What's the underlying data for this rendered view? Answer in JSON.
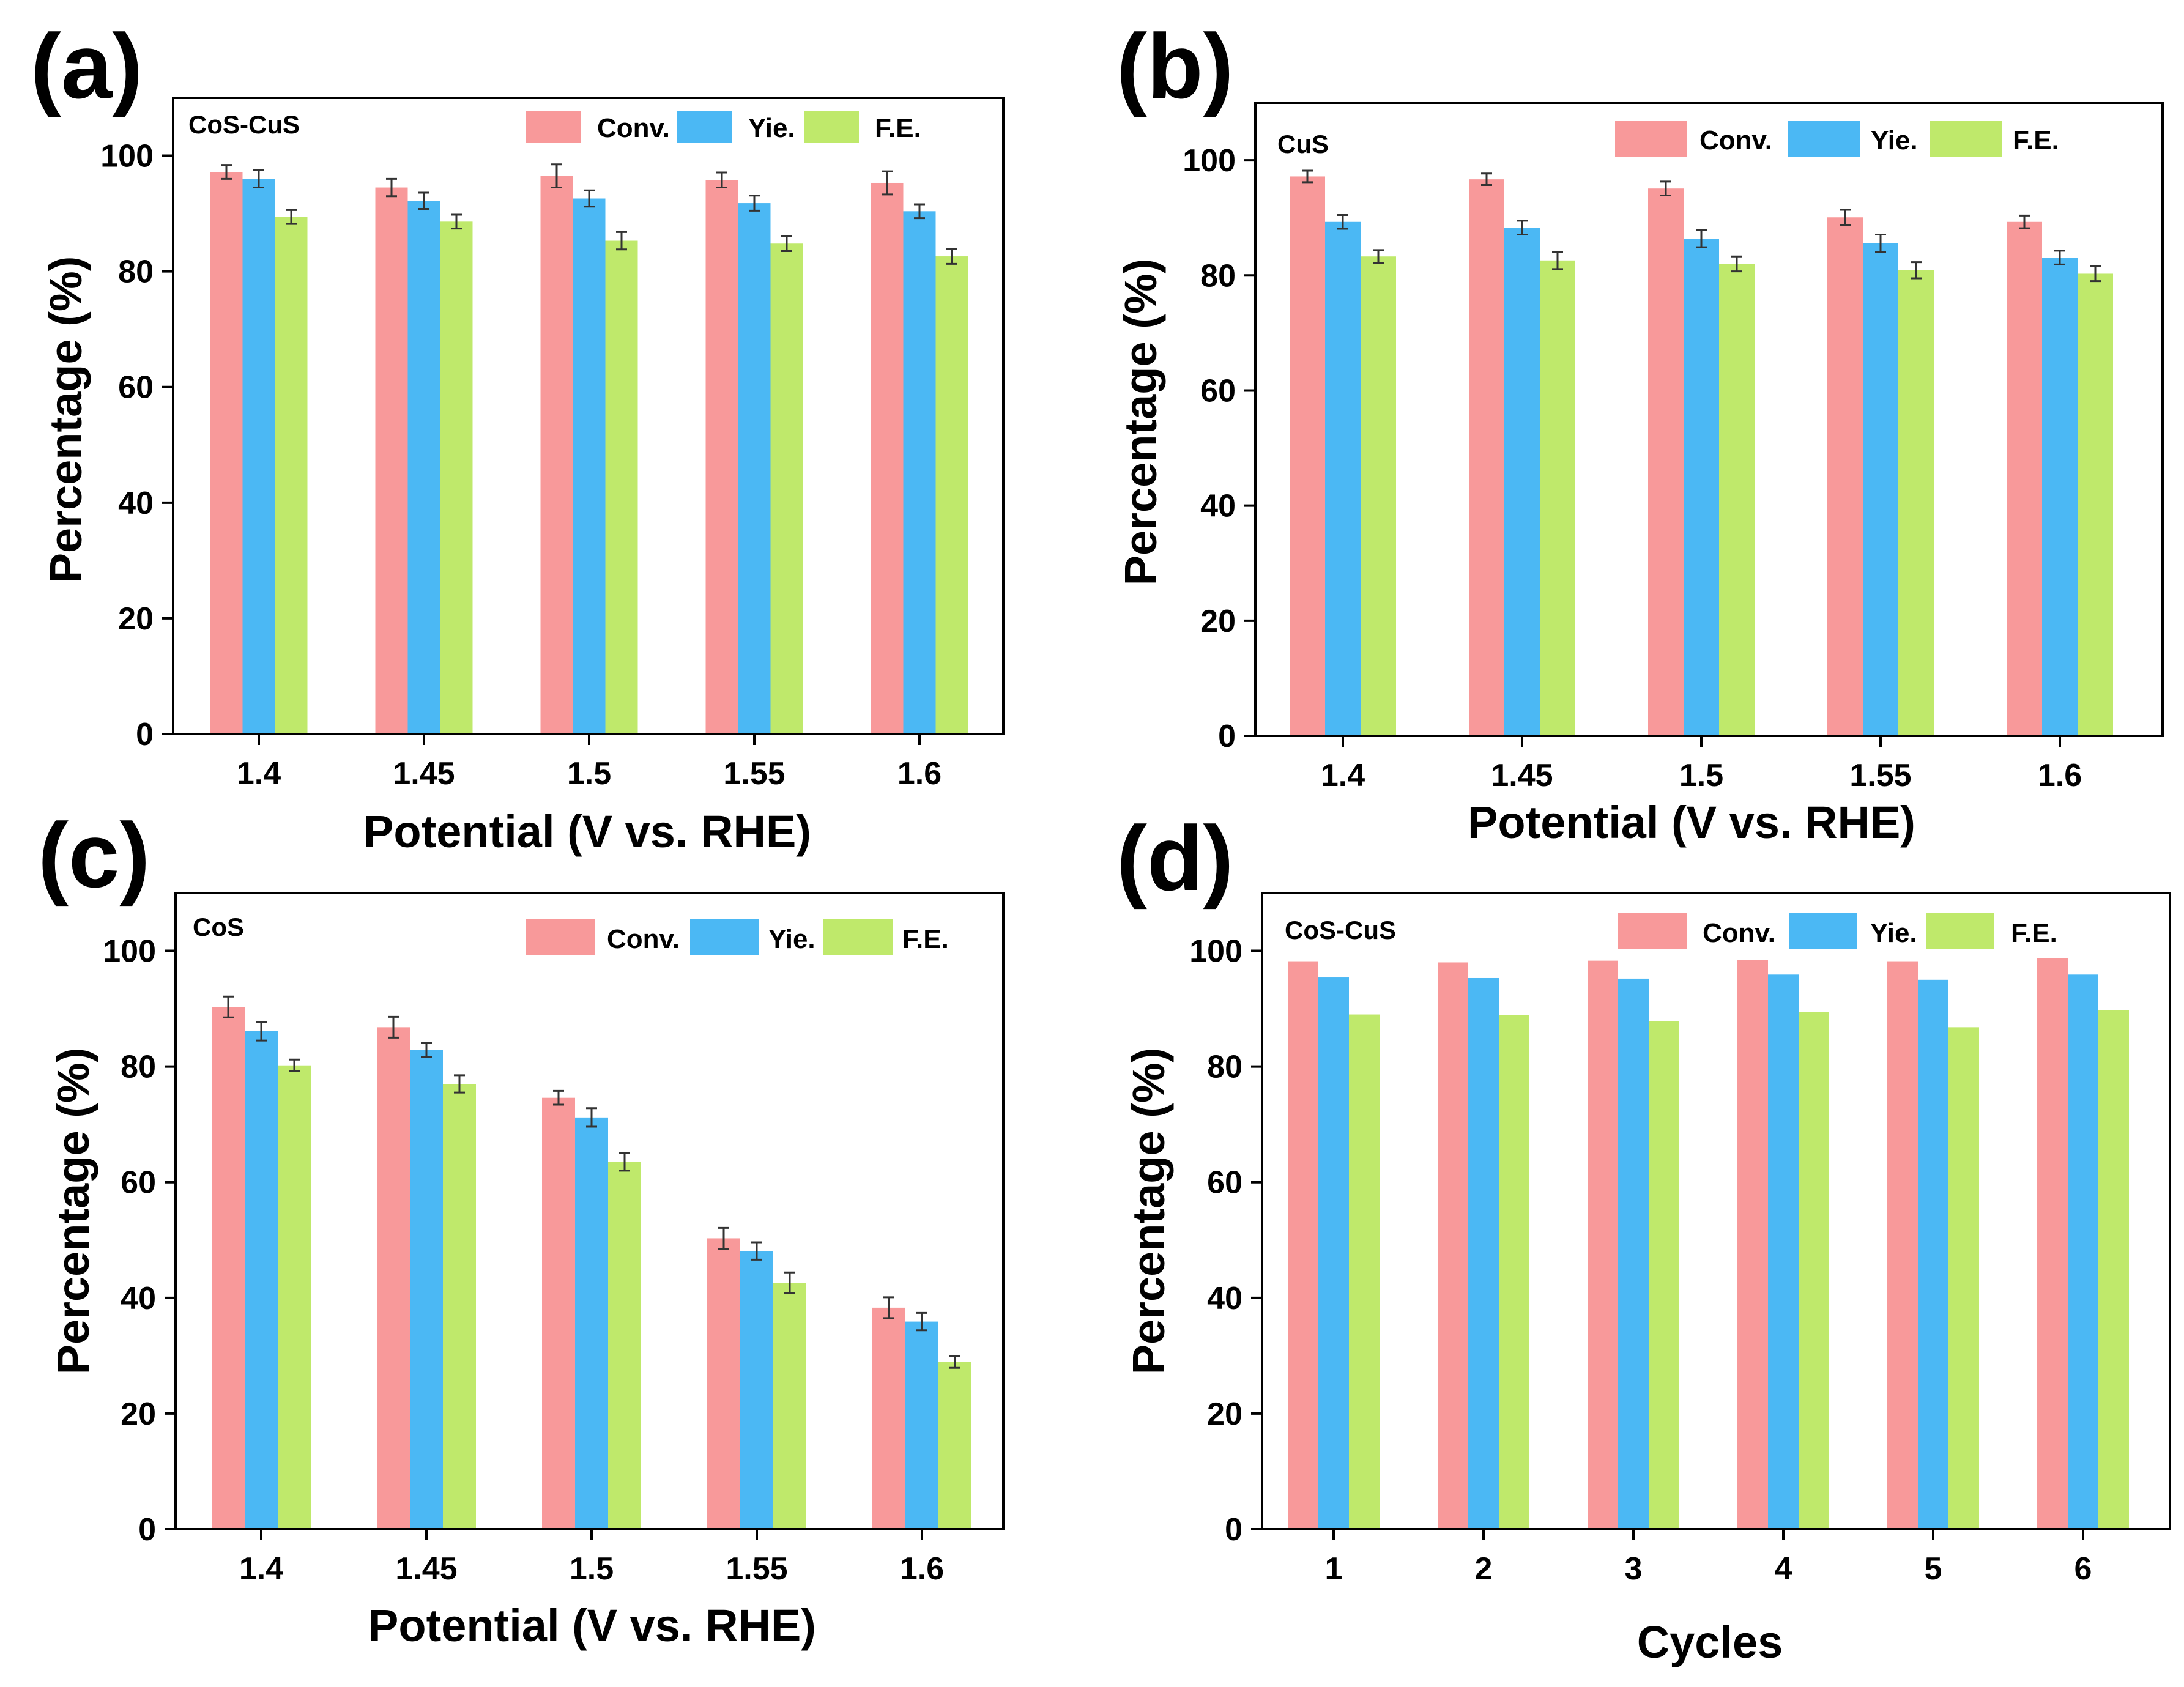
{
  "colors": {
    "conv": "#f8999a",
    "yie": "#4bb8f4",
    "fe": "#bfe96b",
    "axis": "#000000",
    "error": "#333333"
  },
  "legend": [
    "Conv.",
    "Yie.",
    "F.E."
  ],
  "chart_data": [
    {
      "type": "bar",
      "panel": "(a)",
      "sample": "CoS-CuS",
      "xlabel": "Potential (V vs. RHE)",
      "ylabel": "Percentage (%)",
      "ylim": [
        0,
        110
      ],
      "yticks": [
        0,
        20,
        40,
        60,
        80,
        100
      ],
      "categories": [
        "1.4",
        "1.45",
        "1.5",
        "1.55",
        "1.6"
      ],
      "series": [
        {
          "name": "Conv.",
          "values": [
            97.2,
            94.5,
            96.5,
            95.8,
            95.3
          ],
          "errors": [
            1.2,
            1.5,
            2.0,
            1.3,
            2.0
          ]
        },
        {
          "name": "Yie.",
          "values": [
            96.0,
            92.2,
            92.6,
            91.8,
            90.4
          ],
          "errors": [
            1.5,
            1.4,
            1.4,
            1.3,
            1.2
          ]
        },
        {
          "name": "F.E.",
          "values": [
            89.4,
            88.6,
            85.3,
            84.8,
            82.6
          ],
          "errors": [
            1.2,
            1.2,
            1.5,
            1.3,
            1.3
          ]
        }
      ]
    },
    {
      "type": "bar",
      "panel": "(b)",
      "sample": "CuS",
      "xlabel": "Potential (V vs. RHE)",
      "ylabel": "Percentage (%)",
      "ylim": [
        0,
        110
      ],
      "yticks": [
        0,
        20,
        40,
        60,
        80,
        100
      ],
      "categories": [
        "1.4",
        "1.45",
        "1.5",
        "1.55",
        "1.6"
      ],
      "series": [
        {
          "name": "Conv.",
          "values": [
            97.2,
            96.7,
            95.1,
            90.1,
            89.3
          ],
          "errors": [
            1.0,
            1.0,
            1.2,
            1.3,
            1.1
          ]
        },
        {
          "name": "Yie.",
          "values": [
            89.3,
            88.3,
            86.4,
            85.6,
            83.1
          ],
          "errors": [
            1.2,
            1.2,
            1.5,
            1.5,
            1.2
          ]
        },
        {
          "name": "F.E.",
          "values": [
            83.3,
            82.6,
            82.0,
            80.9,
            80.3
          ],
          "errors": [
            1.1,
            1.5,
            1.3,
            1.4,
            1.3
          ]
        }
      ]
    },
    {
      "type": "bar",
      "panel": "(c)",
      "sample": "CoS",
      "xlabel": "Potential (V vs. RHE)",
      "ylabel": "Percentage (%)",
      "ylim": [
        0,
        110
      ],
      "yticks": [
        0,
        20,
        40,
        60,
        80,
        100
      ],
      "categories": [
        "1.4",
        "1.45",
        "1.5",
        "1.55",
        "1.6"
      ],
      "series": [
        {
          "name": "Conv.",
          "values": [
            90.3,
            86.8,
            74.6,
            50.3,
            38.3
          ],
          "errors": [
            1.8,
            1.8,
            1.2,
            1.8,
            1.8
          ]
        },
        {
          "name": "Yie.",
          "values": [
            86.1,
            82.9,
            71.2,
            48.1,
            35.9
          ],
          "errors": [
            1.6,
            1.2,
            1.6,
            1.5,
            1.5
          ]
        },
        {
          "name": "F.E.",
          "values": [
            80.2,
            77.0,
            63.5,
            42.6,
            28.9
          ],
          "errors": [
            1.0,
            1.5,
            1.5,
            1.8,
            1.0
          ]
        }
      ]
    },
    {
      "type": "bar",
      "panel": "(d)",
      "sample": "CoS-CuS",
      "xlabel": "Cycles",
      "ylabel": "Percentage (%)",
      "ylim": [
        0,
        110
      ],
      "yticks": [
        0,
        20,
        40,
        60,
        80,
        100
      ],
      "categories": [
        "1",
        "2",
        "3",
        "4",
        "5",
        "6"
      ],
      "series": [
        {
          "name": "Conv.",
          "values": [
            98.2,
            98.0,
            98.3,
            98.4,
            98.2,
            98.7
          ],
          "errors": [
            0,
            0,
            0,
            0,
            0,
            0
          ]
        },
        {
          "name": "Yie.",
          "values": [
            95.4,
            95.3,
            95.2,
            95.9,
            95.0,
            95.9
          ],
          "errors": [
            0,
            0,
            0,
            0,
            0,
            0
          ]
        },
        {
          "name": "F.E.",
          "values": [
            89.0,
            88.9,
            87.8,
            89.4,
            86.8,
            89.7
          ],
          "errors": [
            0,
            0,
            0,
            0,
            0,
            0
          ]
        }
      ]
    }
  ]
}
